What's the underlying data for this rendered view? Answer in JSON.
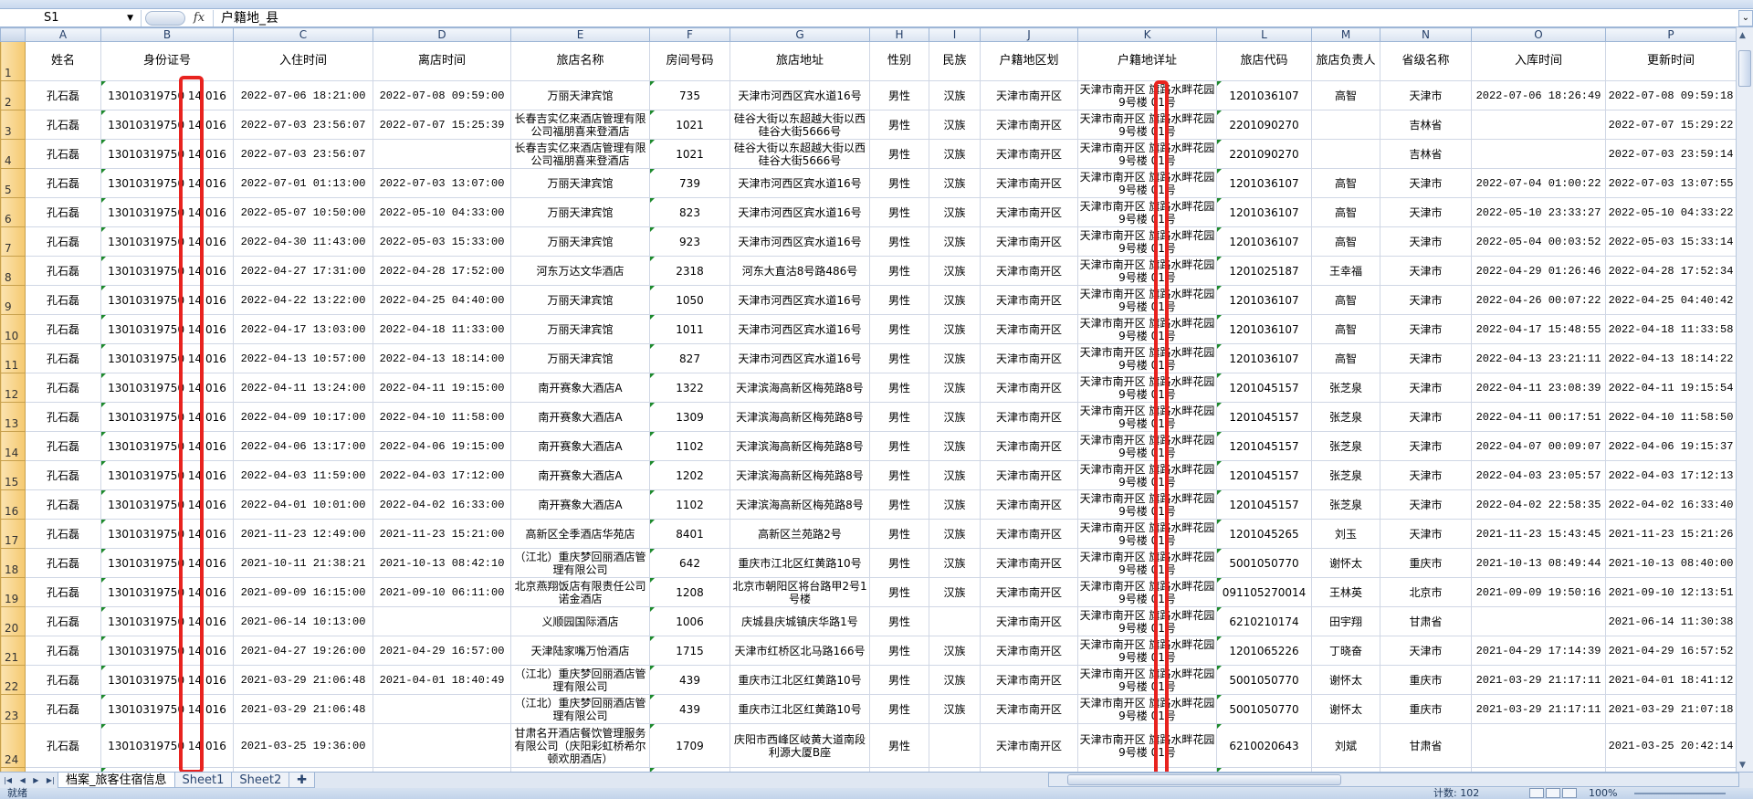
{
  "formula_bar": {
    "name_box": "S1",
    "fx_label": "fx",
    "formula": "户籍地_县"
  },
  "columns": [
    "A",
    "B",
    "C",
    "D",
    "E",
    "F",
    "G",
    "H",
    "I",
    "J",
    "K",
    "L",
    "M",
    "N",
    "O",
    "P"
  ],
  "headers": [
    "姓名",
    "身份证号",
    "入住时间",
    "离店时间",
    "旅店名称",
    "房间号码",
    "旅店地址",
    "性别",
    "民族",
    "户籍地区划",
    "户籍地详址",
    "旅店代码",
    "旅店负责人",
    "省级名称",
    "入库时间",
    "更新时间"
  ],
  "rows": [
    [
      "孔石磊",
      "13010319750 14 016",
      "2022-07-06 18:21:00",
      "2022-07-08 09:59:00",
      "万丽天津宾馆",
      "735",
      "天津市河西区宾水道16号",
      "男性",
      "汉族",
      "天津市南开区",
      "天津市南开区 旗路水畔花园9号楼 01号",
      "1201036107",
      "高智",
      "天津市",
      "2022-07-06 18:26:49",
      "2022-07-08 09:59:18"
    ],
    [
      "孔石磊",
      "13010319750 14 016",
      "2022-07-03 23:56:07",
      "2022-07-07 15:25:39",
      "长春吉实亿来酒店管理有限公司福朋喜来登酒店",
      "1021",
      "硅谷大街以东超越大街以西硅谷大街5666号",
      "男性",
      "汉族",
      "天津市南开区",
      "天津市南开区 旗路水畔花园9号楼 01号",
      "2201090270",
      "",
      "吉林省",
      "",
      "2022-07-07 15:29:22"
    ],
    [
      "孔石磊",
      "13010319750 14 016",
      "2022-07-03 23:56:07",
      "",
      "长春吉实亿来酒店管理有限公司福朋喜来登酒店",
      "1021",
      "硅谷大街以东超越大街以西硅谷大街5666号",
      "男性",
      "汉族",
      "天津市南开区",
      "天津市南开区 旗路水畔花园9号楼 01号",
      "2201090270",
      "",
      "吉林省",
      "",
      "2022-07-03 23:59:14"
    ],
    [
      "孔石磊",
      "13010319750 14 016",
      "2022-07-01 01:13:00",
      "2022-07-03 13:07:00",
      "万丽天津宾馆",
      "739",
      "天津市河西区宾水道16号",
      "男性",
      "汉族",
      "天津市南开区",
      "天津市南开区 旗路水畔花园9号楼 01号",
      "1201036107",
      "高智",
      "天津市",
      "2022-07-04 01:00:22",
      "2022-07-03 13:07:55"
    ],
    [
      "孔石磊",
      "13010319750 14 016",
      "2022-05-07 10:50:00",
      "2022-05-10 04:33:00",
      "万丽天津宾馆",
      "823",
      "天津市河西区宾水道16号",
      "男性",
      "汉族",
      "天津市南开区",
      "天津市南开区 旗路水畔花园9号楼 01号",
      "1201036107",
      "高智",
      "天津市",
      "2022-05-10 23:33:27",
      "2022-05-10 04:33:22"
    ],
    [
      "孔石磊",
      "13010319750 14 016",
      "2022-04-30 11:43:00",
      "2022-05-03 15:33:00",
      "万丽天津宾馆",
      "923",
      "天津市河西区宾水道16号",
      "男性",
      "汉族",
      "天津市南开区",
      "天津市南开区 旗路水畔花园9号楼 01号",
      "1201036107",
      "高智",
      "天津市",
      "2022-05-04 00:03:52",
      "2022-05-03 15:33:14"
    ],
    [
      "孔石磊",
      "13010319750 14 016",
      "2022-04-27 17:31:00",
      "2022-04-28 17:52:00",
      "河东万达文华酒店",
      "2318",
      "河东大直沽8号路486号",
      "男性",
      "汉族",
      "天津市南开区",
      "天津市南开区 旗路水畔花园9号楼 01号",
      "1201025187",
      "王幸福",
      "天津市",
      "2022-04-29 01:26:46",
      "2022-04-28 17:52:34"
    ],
    [
      "孔石磊",
      "13010319750 14 016",
      "2022-04-22 13:22:00",
      "2022-04-25 04:40:00",
      "万丽天津宾馆",
      "1050",
      "天津市河西区宾水道16号",
      "男性",
      "汉族",
      "天津市南开区",
      "天津市南开区 旗路水畔花园9号楼 01号",
      "1201036107",
      "高智",
      "天津市",
      "2022-04-26 00:07:22",
      "2022-04-25 04:40:42"
    ],
    [
      "孔石磊",
      "13010319750 14 016",
      "2022-04-17 13:03:00",
      "2022-04-18 11:33:00",
      "万丽天津宾馆",
      "1011",
      "天津市河西区宾水道16号",
      "男性",
      "汉族",
      "天津市南开区",
      "天津市南开区 旗路水畔花园9号楼 01号",
      "1201036107",
      "高智",
      "天津市",
      "2022-04-17 15:48:55",
      "2022-04-18 11:33:58"
    ],
    [
      "孔石磊",
      "13010319750 14 016",
      "2022-04-13 10:57:00",
      "2022-04-13 18:14:00",
      "万丽天津宾馆",
      "827",
      "天津市河西区宾水道16号",
      "男性",
      "汉族",
      "天津市南开区",
      "天津市南开区 旗路水畔花园9号楼 01号",
      "1201036107",
      "高智",
      "天津市",
      "2022-04-13 23:21:11",
      "2022-04-13 18:14:22"
    ],
    [
      "孔石磊",
      "13010319750 14 016",
      "2022-04-11 13:24:00",
      "2022-04-11 19:15:00",
      "南开赛象大酒店A",
      "1322",
      "天津滨海高新区梅苑路8号",
      "男性",
      "汉族",
      "天津市南开区",
      "天津市南开区 旗路水畔花园9号楼 01号",
      "1201045157",
      "张芝泉",
      "天津市",
      "2022-04-11 23:08:39",
      "2022-04-11 19:15:54"
    ],
    [
      "孔石磊",
      "13010319750 14 016",
      "2022-04-09 10:17:00",
      "2022-04-10 11:58:00",
      "南开赛象大酒店A",
      "1309",
      "天津滨海高新区梅苑路8号",
      "男性",
      "汉族",
      "天津市南开区",
      "天津市南开区 旗路水畔花园9号楼 01号",
      "1201045157",
      "张芝泉",
      "天津市",
      "2022-04-11 00:17:51",
      "2022-04-10 11:58:50"
    ],
    [
      "孔石磊",
      "13010319750 14 016",
      "2022-04-06 13:17:00",
      "2022-04-06 19:15:00",
      "南开赛象大酒店A",
      "1102",
      "天津滨海高新区梅苑路8号",
      "男性",
      "汉族",
      "天津市南开区",
      "天津市南开区 旗路水畔花园9号楼 01号",
      "1201045157",
      "张芝泉",
      "天津市",
      "2022-04-07 00:09:07",
      "2022-04-06 19:15:37"
    ],
    [
      "孔石磊",
      "13010319750 14 016",
      "2022-04-03 11:59:00",
      "2022-04-03 17:12:00",
      "南开赛象大酒店A",
      "1202",
      "天津滨海高新区梅苑路8号",
      "男性",
      "汉族",
      "天津市南开区",
      "天津市南开区 旗路水畔花园9号楼 01号",
      "1201045157",
      "张芝泉",
      "天津市",
      "2022-04-03 23:05:57",
      "2022-04-03 17:12:13"
    ],
    [
      "孔石磊",
      "13010319750 14 016",
      "2022-04-01 10:01:00",
      "2022-04-02 16:33:00",
      "南开赛象大酒店A",
      "1102",
      "天津滨海高新区梅苑路8号",
      "男性",
      "汉族",
      "天津市南开区",
      "天津市南开区 旗路水畔花园9号楼 01号",
      "1201045157",
      "张芝泉",
      "天津市",
      "2022-04-02 22:58:35",
      "2022-04-02 16:33:40"
    ],
    [
      "孔石磊",
      "13010319750 14 016",
      "2021-11-23 12:49:00",
      "2021-11-23 15:21:00",
      "高新区全季酒店华苑店",
      "8401",
      "高新区兰苑路2号",
      "男性",
      "汉族",
      "天津市南开区",
      "天津市南开区 旗路水畔花园9号楼 01号",
      "1201045265",
      "刘玉",
      "天津市",
      "2021-11-23 15:43:45",
      "2021-11-23 15:21:26"
    ],
    [
      "孔石磊",
      "13010319750 14 016",
      "2021-10-11 21:38:21",
      "2021-10-13 08:42:10",
      "（江北）重庆梦回丽酒店管理有限公司",
      "642",
      "重庆市江北区红黄路10号",
      "男性",
      "汉族",
      "天津市南开区",
      "天津市南开区 旗路水畔花园9号楼 01号",
      "5001050770",
      "谢怀太",
      "重庆市",
      "2021-10-13 08:49:44",
      "2021-10-13 08:40:00"
    ],
    [
      "孔石磊",
      "13010319750 14 016",
      "2021-09-09 16:15:00",
      "2021-09-10 06:11:00",
      "北京燕翔饭店有限责任公司诺金酒店",
      "1208",
      "北京市朝阳区将台路甲2号1号楼",
      "男性",
      "汉族",
      "天津市南开区",
      "天津市南开区 旗路水畔花园9号楼 01号",
      "091105270014",
      "王林英",
      "北京市",
      "2021-09-09 19:50:16",
      "2021-09-10 12:13:51"
    ],
    [
      "孔石磊",
      "13010319750 14 016",
      "2021-06-14 10:13:00",
      "",
      "义顺园国际酒店",
      "1006",
      "庆城县庆城镇庆华路1号",
      "男性",
      "",
      "天津市南开区",
      "天津市南开区 旗路水畔花园9号楼 01号",
      "6210210174",
      "田宇翔",
      "甘肃省",
      "",
      "2021-06-14 11:30:38"
    ],
    [
      "孔石磊",
      "13010319750 14 016",
      "2021-04-27 19:26:00",
      "2021-04-29 16:57:00",
      "天津陆家嘴万怡酒店",
      "1715",
      "天津市红桥区北马路166号",
      "男性",
      "汉族",
      "天津市南开区",
      "天津市南开区 旗路水畔花园9号楼 01号",
      "1201065226",
      "丁晓奋",
      "天津市",
      "2021-04-29 17:14:39",
      "2021-04-29 16:57:52"
    ],
    [
      "孔石磊",
      "13010319750 14 016",
      "2021-03-29 21:06:48",
      "2021-04-01 18:40:49",
      "（江北）重庆梦回丽酒店管理有限公司",
      "439",
      "重庆市江北区红黄路10号",
      "男性",
      "汉族",
      "天津市南开区",
      "天津市南开区 旗路水畔花园9号楼 01号",
      "5001050770",
      "谢怀太",
      "重庆市",
      "2021-03-29 21:17:11",
      "2021-04-01 18:41:12"
    ],
    [
      "孔石磊",
      "13010319750 14 016",
      "2021-03-29 21:06:48",
      "",
      "（江北）重庆梦回丽酒店管理有限公司",
      "439",
      "重庆市江北区红黄路10号",
      "男性",
      "汉族",
      "天津市南开区",
      "天津市南开区 旗路水畔花园9号楼 01号",
      "5001050770",
      "谢怀太",
      "重庆市",
      "2021-03-29 21:17:11",
      "2021-03-29 21:07:18"
    ],
    [
      "孔石磊",
      "13010319750 14 016",
      "2021-03-25 19:36:00",
      "",
      "甘肃名开酒店餐饮管理服务有限公司（庆阳彩虹桥希尔顿欢朋酒店）",
      "1709",
      "庆阳市西峰区岐黄大道南段利源大厦B座",
      "男性",
      "",
      "天津市南开区",
      "天津市南开区 旗路水畔花园9号楼 01号",
      "6210020643",
      "刘斌",
      "甘肃省",
      "",
      "2021-03-25 20:42:14"
    ]
  ],
  "sheet_tabs": [
    {
      "label": "档案_旅客住宿信息",
      "active": true
    },
    {
      "label": "Sheet1",
      "active": false
    },
    {
      "label": "Sheet2",
      "active": false
    }
  ],
  "status_bar": {
    "ready": "就绪",
    "count": "计数: 102",
    "zoom": "100%"
  },
  "colors": {
    "highlight_box": "#e8231f",
    "row_header": "#f5c96f",
    "error_triangle": "#1d8a2c"
  }
}
